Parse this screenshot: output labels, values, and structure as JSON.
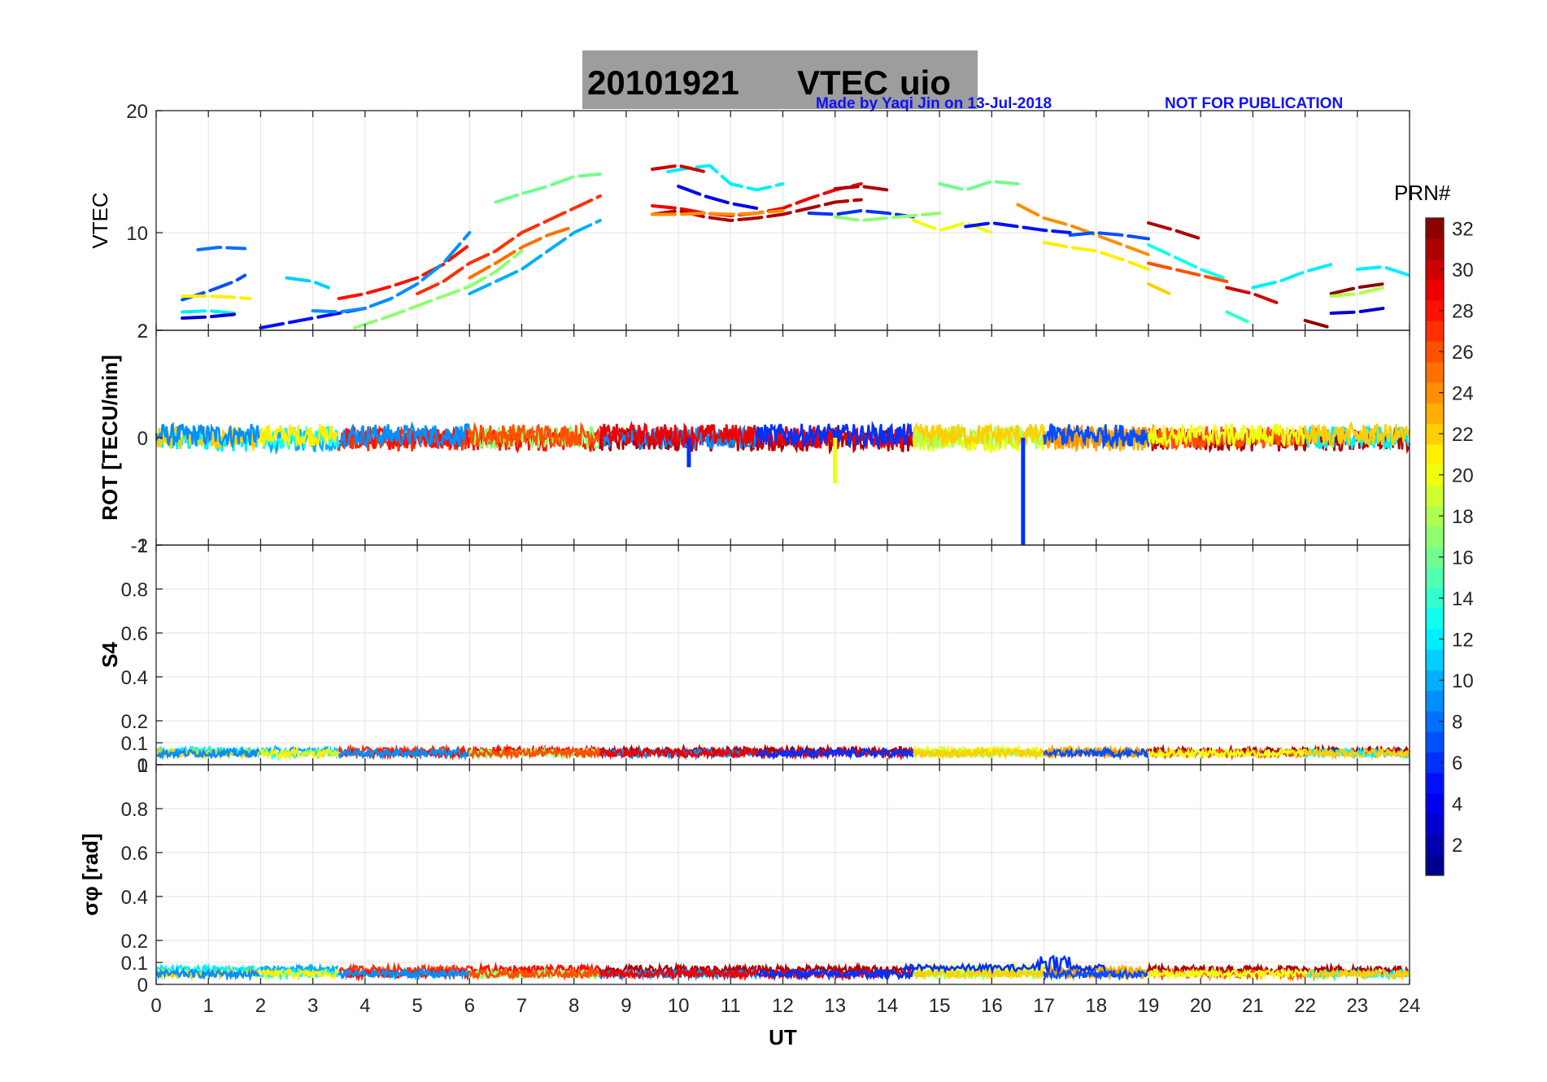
{
  "title": {
    "date": "20101921",
    "label": "VTEC",
    "station": "uio"
  },
  "credit": {
    "author": "Made by Yaqi Jin on 13-Jul-2018",
    "notice": "NOT FOR PUBLICATION"
  },
  "colorbar": {
    "label": "PRN#",
    "ticks": [
      "2",
      "4",
      "6",
      "8",
      "10",
      "12",
      "14",
      "16",
      "18",
      "20",
      "22",
      "24",
      "26",
      "28",
      "30",
      "32"
    ],
    "range": [
      1,
      32
    ],
    "colormap": "jet"
  },
  "chart_data": [
    {
      "type": "scatter",
      "panel": "vtec",
      "ylabel": "VTEC",
      "ylim": [
        2,
        20
      ],
      "yticks": [
        "2",
        "10",
        "20"
      ],
      "xlim": [
        0,
        24
      ],
      "grid": true,
      "series": [
        {
          "prn": 7,
          "x": [
            0.5,
            1.0,
            1.5,
            1.7
          ],
          "y": [
            4.5,
            5.2,
            6.0,
            6.5
          ]
        },
        {
          "prn": 8,
          "x": [
            0.8,
            1.2,
            1.7
          ],
          "y": [
            8.6,
            8.8,
            8.7
          ]
        },
        {
          "prn": 21,
          "x": [
            0.5,
            1.0,
            1.5,
            1.8
          ],
          "y": [
            4.8,
            4.8,
            4.7,
            4.6
          ]
        },
        {
          "prn": 12,
          "x": [
            0.5,
            1.0,
            1.5
          ],
          "y": [
            3.5,
            3.6,
            3.4
          ]
        },
        {
          "prn": 3,
          "x": [
            0.5,
            1.0,
            1.5
          ],
          "y": [
            3.0,
            3.1,
            3.3
          ]
        },
        {
          "prn": 11,
          "x": [
            2.5,
            3.0,
            3.3
          ],
          "y": [
            6.3,
            6.0,
            5.5
          ]
        },
        {
          "prn": 5,
          "x": [
            2.0,
            2.5,
            3.0,
            3.5,
            4.0
          ],
          "y": [
            2.2,
            2.6,
            3.0,
            3.4,
            3.8
          ]
        },
        {
          "prn": 28,
          "x": [
            3.5,
            4.0,
            4.5,
            5.0,
            5.5,
            6.0
          ],
          "y": [
            4.6,
            5.0,
            5.6,
            6.3,
            7.4,
            9.0
          ]
        },
        {
          "prn": 9,
          "x": [
            3.0,
            3.5,
            4.0,
            4.5,
            5.0,
            5.5,
            6.0
          ],
          "y": [
            3.6,
            3.5,
            3.8,
            4.6,
            5.8,
            7.5,
            10.0
          ]
        },
        {
          "prn": 17,
          "x": [
            3.8,
            4.5,
            5.0,
            5.5,
            6.0,
            6.5,
            7.0
          ],
          "y": [
            2.2,
            3.2,
            4.0,
            4.8,
            5.6,
            6.8,
            8.5
          ]
        },
        {
          "prn": 27,
          "x": [
            5.0,
            5.5,
            6.0,
            6.5,
            7.0,
            7.5,
            8.0,
            8.5
          ],
          "y": [
            5.0,
            6.0,
            7.5,
            8.5,
            10.0,
            11.0,
            12.0,
            13.0
          ]
        },
        {
          "prn": 25,
          "x": [
            6.0,
            6.5,
            7.0,
            7.5,
            8.0
          ],
          "y": [
            6.3,
            7.5,
            8.8,
            9.8,
            10.5
          ]
        },
        {
          "prn": 16,
          "x": [
            6.5,
            7.0,
            7.5,
            8.0,
            8.5
          ],
          "y": [
            12.5,
            13.2,
            13.8,
            14.6,
            14.8
          ]
        },
        {
          "prn": 10,
          "x": [
            6.0,
            6.5,
            7.0,
            7.5,
            8.0,
            8.5
          ],
          "y": [
            5.0,
            6.0,
            7.0,
            8.5,
            10.0,
            11.0
          ]
        },
        {
          "prn": 31,
          "x": [
            9.5,
            10.0,
            10.5,
            11.0,
            11.5,
            12.0,
            12.5,
            13.0,
            13.5
          ],
          "y": [
            11.5,
            11.8,
            11.3,
            11.0,
            11.2,
            11.5,
            12.0,
            12.5,
            12.7
          ]
        },
        {
          "prn": 29,
          "x": [
            9.5,
            10.0,
            10.5,
            11.0,
            11.5,
            12.0,
            12.5,
            13.0,
            13.5
          ],
          "y": [
            12.2,
            12.0,
            11.6,
            11.4,
            11.6,
            12.0,
            12.8,
            13.5,
            14.0
          ]
        },
        {
          "prn": 24,
          "x": [
            9.5,
            10.0,
            10.5,
            11.0,
            11.5,
            12.0
          ],
          "y": [
            11.5,
            11.5,
            11.6,
            11.5,
            11.6,
            11.8
          ]
        },
        {
          "prn": 4,
          "x": [
            10.0,
            10.5,
            11.0,
            11.5
          ],
          "y": [
            13.8,
            13.0,
            12.4,
            12.0
          ]
        },
        {
          "prn": 12,
          "x": [
            9.8,
            10.2,
            10.6,
            11.0,
            11.5,
            12.0
          ],
          "y": [
            15.0,
            15.3,
            15.5,
            14.0,
            13.5,
            14.0
          ]
        },
        {
          "prn": 30,
          "x": [
            9.5,
            10.0,
            10.5
          ],
          "y": [
            15.2,
            15.5,
            15.0
          ]
        },
        {
          "prn": 6,
          "x": [
            12.5,
            13.0,
            13.5,
            14.0,
            14.5
          ],
          "y": [
            11.6,
            11.5,
            11.8,
            11.6,
            11.3
          ]
        },
        {
          "prn": 31,
          "x": [
            13.0,
            13.5,
            14.0
          ],
          "y": [
            13.6,
            13.8,
            13.5
          ]
        },
        {
          "prn": 17,
          "x": [
            13.0,
            13.5,
            14.0,
            14.5,
            15.0
          ],
          "y": [
            11.3,
            11.0,
            11.2,
            11.4,
            11.6
          ]
        },
        {
          "prn": 20,
          "x": [
            14.5,
            15.0,
            15.5,
            16.0
          ],
          "y": [
            11.0,
            10.2,
            10.8,
            10.0
          ]
        },
        {
          "prn": 16,
          "x": [
            15.0,
            15.5,
            16.0,
            16.5
          ],
          "y": [
            14.0,
            13.5,
            14.2,
            14.0
          ]
        },
        {
          "prn": 5,
          "x": [
            15.5,
            16.0,
            16.5,
            17.0,
            17.5
          ],
          "y": [
            10.5,
            10.8,
            10.5,
            10.2,
            10.0
          ]
        },
        {
          "prn": 24,
          "x": [
            16.5,
            17.0,
            17.5,
            18.0,
            18.5,
            19.0
          ],
          "y": [
            12.3,
            11.2,
            10.6,
            9.8,
            9.0,
            8.2
          ]
        },
        {
          "prn": 21,
          "x": [
            17.0,
            17.5,
            18.0,
            18.5,
            19.0
          ],
          "y": [
            9.2,
            8.8,
            8.5,
            7.8,
            7.0
          ]
        },
        {
          "prn": 7,
          "x": [
            17.5,
            18.0,
            18.5,
            19.0
          ],
          "y": [
            9.8,
            10.0,
            9.8,
            9.5
          ]
        },
        {
          "prn": 31,
          "x": [
            19.0,
            19.5,
            20.0
          ],
          "y": [
            10.8,
            10.2,
            9.5
          ]
        },
        {
          "prn": 26,
          "x": [
            19.0,
            19.5,
            20.0,
            20.5
          ],
          "y": [
            7.5,
            7.0,
            6.5,
            6.0
          ]
        },
        {
          "prn": 13,
          "x": [
            19.0,
            19.5,
            20.0,
            20.5
          ],
          "y": [
            9.0,
            8.0,
            7.0,
            6.2
          ]
        },
        {
          "prn": 22,
          "x": [
            19.0,
            19.5
          ],
          "y": [
            5.8,
            4.8
          ]
        },
        {
          "prn": 30,
          "x": [
            20.5,
            21.0,
            21.5
          ],
          "y": [
            5.5,
            5.0,
            4.2
          ]
        },
        {
          "prn": 12,
          "x": [
            21.0,
            21.5,
            22.0,
            22.5
          ],
          "y": [
            5.5,
            6.0,
            6.8,
            7.4
          ]
        },
        {
          "prn": 14,
          "x": [
            20.5,
            21.0
          ],
          "y": [
            3.5,
            2.5
          ]
        },
        {
          "prn": 3,
          "x": [
            22.5,
            23.0,
            23.5
          ],
          "y": [
            3.4,
            3.5,
            3.8
          ]
        },
        {
          "prn": 32,
          "x": [
            22.5,
            23.0,
            23.5
          ],
          "y": [
            5.0,
            5.5,
            5.8
          ]
        },
        {
          "prn": 18,
          "x": [
            22.5,
            23.0,
            23.5
          ],
          "y": [
            4.8,
            5.0,
            5.5
          ]
        },
        {
          "prn": 32,
          "x": [
            22.0,
            22.5
          ],
          "y": [
            2.8,
            2.2
          ]
        },
        {
          "prn": 12,
          "x": [
            23.0,
            23.5,
            24.0
          ],
          "y": [
            7.0,
            7.2,
            6.5
          ]
        }
      ]
    },
    {
      "type": "scatter",
      "panel": "rot",
      "ylabel": "ROT [TECU/min]",
      "ylim": [
        -2,
        2
      ],
      "yticks": [
        "-2",
        "0",
        "2"
      ],
      "xlim": [
        0,
        24
      ],
      "grid": false,
      "description_values": {
        "band_center": 0,
        "band_halfwidth": 0.25,
        "spikes": [
          {
            "prn": 6,
            "x": 16.6,
            "y": -2.0
          },
          {
            "prn": 20,
            "x": 13.0,
            "y": -0.85
          },
          {
            "prn": 6,
            "x": 10.2,
            "y": -0.55
          }
        ]
      }
    },
    {
      "type": "scatter",
      "panel": "s4",
      "ylabel": "S4",
      "ylim": [
        0,
        1
      ],
      "yticks": [
        "0",
        "0.1",
        "0.2",
        "0.4",
        "0.6",
        "0.8",
        "1"
      ],
      "xlim": [
        0,
        24
      ],
      "grid": true,
      "description_values": {
        "typical": 0.05,
        "max": 0.1
      }
    },
    {
      "type": "scatter",
      "panel": "sigma_phi",
      "ylabel": "σφ [rad]",
      "ylim": [
        0,
        1
      ],
      "yticks": [
        "0",
        "0.1",
        "0.2",
        "0.4",
        "0.6",
        "0.8",
        "1"
      ],
      "xlim": [
        0,
        24
      ],
      "xlabel": "UT",
      "xticks": [
        "0",
        "1",
        "2",
        "3",
        "4",
        "5",
        "6",
        "7",
        "8",
        "9",
        "10",
        "11",
        "12",
        "13",
        "14",
        "15",
        "16",
        "17",
        "18",
        "19",
        "20",
        "21",
        "22",
        "23",
        "24"
      ],
      "grid": true,
      "description_values": {
        "typical": 0.05,
        "max": 0.18
      }
    }
  ]
}
